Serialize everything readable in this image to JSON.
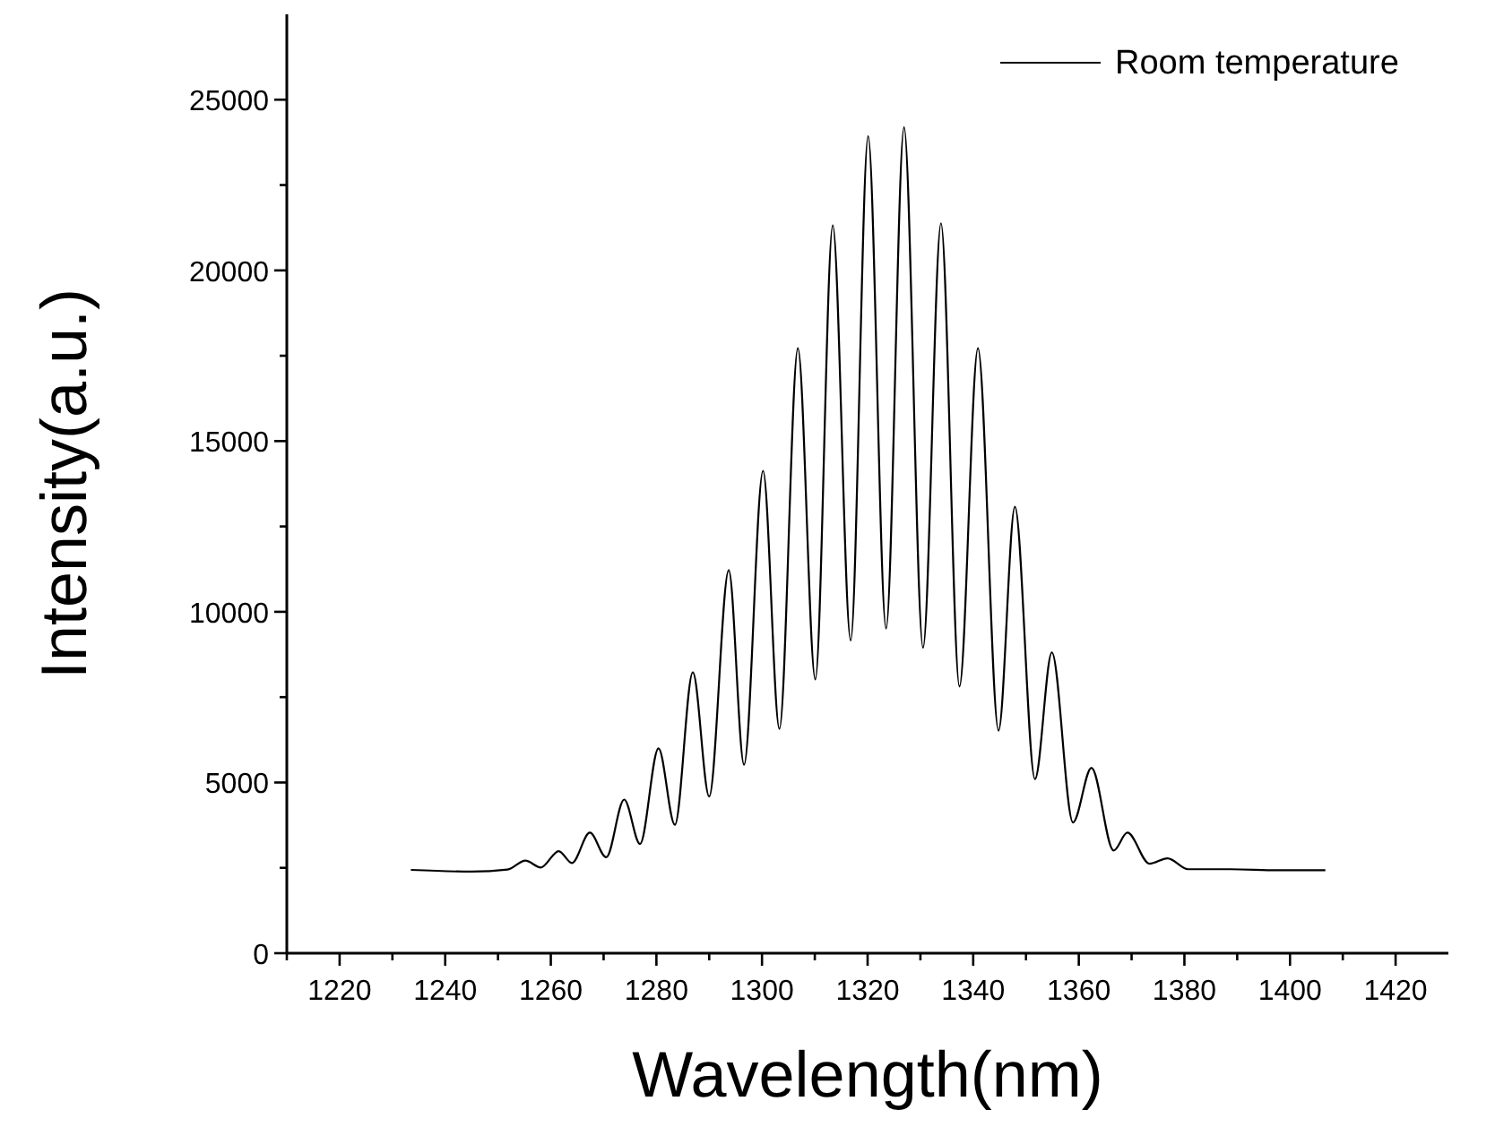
{
  "chart_data": {
    "type": "line",
    "xlabel": "Wavelength(nm)",
    "ylabel": "Intensity(a.u.)",
    "xlim": [
      1210,
      1430
    ],
    "ylim": [
      0,
      27500
    ],
    "xticks": [
      {
        "value": 1210,
        "label": null
      },
      1220,
      {
        "value": 1230,
        "label": null
      },
      1240,
      {
        "value": 1250,
        "label": null
      },
      1260,
      {
        "value": 1270,
        "label": null
      },
      1280,
      {
        "value": 1290,
        "label": null
      },
      1300,
      {
        "value": 1310,
        "label": null
      },
      1320,
      {
        "value": 1330,
        "label": null
      },
      1340,
      {
        "value": 1350,
        "label": null
      },
      1360,
      {
        "value": 1370,
        "label": null
      },
      1380,
      {
        "value": 1390,
        "label": null
      },
      1400,
      {
        "value": 1410,
        "label": null
      },
      1420
    ],
    "yticks": [
      0,
      {
        "value": 2500,
        "label": null
      },
      5000,
      {
        "value": 7500,
        "label": null
      },
      10000,
      {
        "value": 12500,
        "label": null
      },
      15000,
      {
        "value": 17500,
        "label": null
      },
      20000,
      {
        "value": 22500,
        "label": null
      },
      25000
    ],
    "grid": false,
    "legend": "top right",
    "marker": "none",
    "line_style": "solid",
    "series": [
      {
        "name": "Room temperature",
        "color": "#000000",
        "x": [
          1233.5,
          1245,
          1251.8,
          1255.2,
          1258.1,
          1261.5,
          1264,
          1267.4,
          1270.5,
          1273.9,
          1276.9,
          1280.4,
          1283.5,
          1286.9,
          1290,
          1293.7,
          1296.6,
          1300.2,
          1303.3,
          1306.8,
          1310.1,
          1313.4,
          1316.8,
          1320.1,
          1323.5,
          1326.9,
          1330.5,
          1333.9,
          1337.4,
          1340.9,
          1344.8,
          1347.9,
          1351.7,
          1354.9,
          1358.9,
          1362.4,
          1366.6,
          1369.2,
          1373.4,
          1376.8,
          1380.7,
          1388.7,
          1397.7,
          1406.7
        ],
        "values": [
          2440,
          2390,
          2450,
          2710,
          2510,
          2990,
          2640,
          3530,
          2810,
          4500,
          3200,
          6000,
          3760,
          8230,
          4590,
          11220,
          5520,
          14130,
          6570,
          17720,
          8020,
          21320,
          9160,
          23930,
          9510,
          24190,
          8950,
          21380,
          7810,
          17720,
          6520,
          13080,
          5100,
          8810,
          3830,
          5430,
          3010,
          3530,
          2620,
          2780,
          2460,
          2460,
          2430,
          2430
        ]
      }
    ]
  }
}
